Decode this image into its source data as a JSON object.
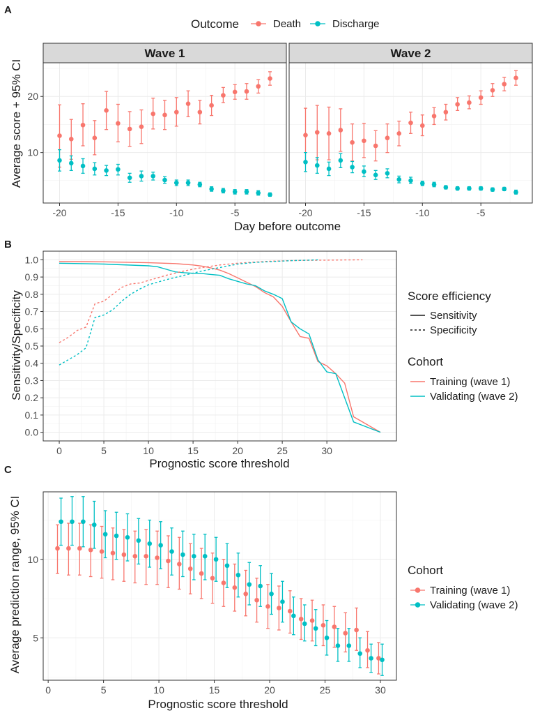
{
  "colors": {
    "death": "#F8766D",
    "discharge": "#00BFC4",
    "training": "#F8766D",
    "validating": "#00BFC4"
  },
  "chart_data": [
    {
      "panel": "A",
      "type": "scatter",
      "subtype": "pointrange-faceted",
      "facets": [
        "Wave 1",
        "Wave 2"
      ],
      "xlabel": "Day before outcome",
      "ylabel": "Average score + 95% CI",
      "xlim": [
        -21.4,
        -0.6
      ],
      "ylim": [
        1,
        26
      ],
      "xticks": [
        -20,
        -15,
        -10,
        -5
      ],
      "yticks": [
        10,
        20
      ],
      "legend": {
        "title": "Outcome",
        "position": "top",
        "entries": [
          "Death",
          "Discharge"
        ]
      },
      "series": [
        {
          "facet": "Wave 1",
          "name": "Death",
          "x": [
            -20,
            -19,
            -18,
            -17,
            -16,
            -15,
            -14,
            -13,
            -12,
            -11,
            -10,
            -9,
            -8,
            -7,
            -6,
            -5,
            -4,
            -3,
            -2
          ],
          "y": [
            13.0,
            12.4,
            14.9,
            12.6,
            17.5,
            15.2,
            14.2,
            14.6,
            16.9,
            16.7,
            17.2,
            18.7,
            17.2,
            18.4,
            20.2,
            20.8,
            20.9,
            21.8,
            23.2
          ],
          "lo": [
            7.4,
            8.8,
            11.2,
            9.6,
            14.1,
            11.9,
            11.1,
            11.6,
            14.2,
            14.1,
            14.7,
            16.4,
            15.1,
            16.6,
            18.9,
            19.5,
            19.5,
            20.6,
            22.0
          ],
          "hi": [
            18.5,
            15.9,
            18.7,
            15.7,
            20.9,
            18.6,
            17.3,
            17.6,
            19.7,
            19.3,
            19.8,
            21.0,
            19.3,
            20.2,
            21.6,
            22.1,
            22.3,
            23.0,
            24.4
          ]
        },
        {
          "facet": "Wave 1",
          "name": "Discharge",
          "x": [
            -20,
            -19,
            -18,
            -17,
            -16,
            -15,
            -14,
            -13,
            -12,
            -11,
            -10,
            -9,
            -8,
            -7,
            -6,
            -5,
            -4,
            -3,
            -2
          ],
          "y": [
            8.6,
            8.1,
            7.6,
            7.1,
            6.8,
            7.0,
            5.5,
            5.8,
            5.8,
            5.1,
            4.6,
            4.6,
            4.3,
            3.5,
            3.2,
            3.0,
            3.0,
            2.8,
            2.5
          ],
          "lo": [
            6.7,
            6.8,
            6.3,
            6.0,
            5.9,
            6.0,
            4.7,
            4.9,
            5.1,
            4.5,
            4.1,
            4.1,
            3.9,
            3.1,
            2.8,
            2.6,
            2.6,
            2.4,
            2.2
          ],
          "hi": [
            10.5,
            9.4,
            8.9,
            8.2,
            7.7,
            7.9,
            6.3,
            6.7,
            6.5,
            5.7,
            5.1,
            5.1,
            4.7,
            3.9,
            3.6,
            3.4,
            3.4,
            3.2,
            2.8
          ]
        },
        {
          "facet": "Wave 2",
          "name": "Death",
          "x": [
            -20,
            -19,
            -18,
            -17,
            -16,
            -15,
            -14,
            -13,
            -12,
            -11,
            -10,
            -9,
            -8,
            -7,
            -6,
            -5,
            -4,
            -3,
            -2
          ],
          "y": [
            13.1,
            13.6,
            13.4,
            14.0,
            11.8,
            12.1,
            11.2,
            12.6,
            13.4,
            15.3,
            14.8,
            16.5,
            17.2,
            18.6,
            18.9,
            19.8,
            21.1,
            22.2,
            23.3
          ],
          "lo": [
            8.2,
            8.7,
            8.7,
            10.2,
            8.5,
            9.1,
            8.5,
            10.0,
            11.2,
            13.4,
            13.0,
            15.0,
            15.8,
            17.5,
            17.8,
            18.6,
            20.0,
            21.0,
            22.0
          ],
          "hi": [
            17.9,
            18.4,
            18.1,
            17.8,
            15.1,
            15.2,
            13.9,
            15.1,
            15.6,
            17.2,
            16.7,
            18.0,
            18.6,
            19.8,
            20.1,
            21.0,
            22.3,
            23.4,
            24.6
          ]
        },
        {
          "facet": "Wave 2",
          "name": "Discharge",
          "x": [
            -20,
            -19,
            -18,
            -17,
            -16,
            -15,
            -14,
            -13,
            -12,
            -11,
            -10,
            -9,
            -8,
            -7,
            -6,
            -5,
            -4,
            -3,
            -2
          ],
          "y": [
            8.3,
            7.7,
            7.1,
            8.6,
            7.4,
            6.6,
            6.0,
            6.3,
            5.2,
            5.0,
            4.5,
            4.3,
            3.8,
            3.6,
            3.6,
            3.6,
            3.4,
            3.5,
            2.9
          ],
          "lo": [
            6.6,
            6.3,
            5.9,
            7.3,
            6.4,
            5.7,
            5.2,
            5.5,
            4.6,
            4.5,
            4.1,
            3.9,
            3.5,
            3.3,
            3.3,
            3.3,
            3.1,
            3.2,
            2.6
          ],
          "hi": [
            10.0,
            9.1,
            8.3,
            9.8,
            8.4,
            7.6,
            6.8,
            7.1,
            5.8,
            5.6,
            4.9,
            4.7,
            4.1,
            3.9,
            3.9,
            3.9,
            3.7,
            3.8,
            3.3
          ]
        }
      ]
    },
    {
      "panel": "B",
      "type": "line",
      "xlabel": "Prognostic score threshold",
      "ylabel": "Sensitivity/Specificity",
      "xlim": [
        -1.8,
        37.8
      ],
      "ylim": [
        -0.05,
        1.05
      ],
      "xticks": [
        0,
        5,
        10,
        15,
        20,
        25,
        30
      ],
      "yticks": [
        0.0,
        0.1,
        0.2,
        0.3,
        0.4,
        0.5,
        0.6,
        0.7,
        0.8,
        0.9,
        1.0
      ],
      "legends": [
        {
          "title": "Score efficiency",
          "entries": [
            "Sensitivity",
            "Specificity"
          ]
        },
        {
          "title": "Cohort",
          "entries": [
            "Training (wave 1)",
            "Validating (wave 2)"
          ]
        }
      ],
      "series": [
        {
          "name": "Training (wave 1)",
          "measure": "Sensitivity",
          "x": [
            0,
            5,
            10,
            13,
            15,
            16,
            17,
            18,
            19,
            20,
            21,
            22,
            23,
            24,
            25,
            26,
            27,
            28,
            29,
            30,
            31,
            32,
            33,
            36
          ],
          "y": [
            0.99,
            0.988,
            0.983,
            0.978,
            0.97,
            0.963,
            0.953,
            0.94,
            0.92,
            0.895,
            0.87,
            0.845,
            0.81,
            0.785,
            0.73,
            0.64,
            0.555,
            0.545,
            0.41,
            0.385,
            0.34,
            0.285,
            0.09,
            0.0
          ]
        },
        {
          "name": "Validating (wave 2)",
          "measure": "Sensitivity",
          "x": [
            0,
            5,
            10,
            11,
            12,
            13,
            14,
            15,
            16,
            17,
            18,
            19,
            20,
            21,
            22,
            23,
            24,
            25,
            26,
            27,
            28,
            29,
            30,
            31,
            32,
            33,
            36
          ],
          "y": [
            0.98,
            0.975,
            0.965,
            0.96,
            0.945,
            0.93,
            0.925,
            0.922,
            0.92,
            0.915,
            0.91,
            0.89,
            0.875,
            0.86,
            0.85,
            0.82,
            0.8,
            0.775,
            0.64,
            0.6,
            0.57,
            0.42,
            0.35,
            0.34,
            0.2,
            0.06,
            0.0
          ]
        },
        {
          "name": "Training (wave 1)",
          "measure": "Specificity",
          "x": [
            0,
            1,
            2,
            3,
            4,
            5,
            6,
            7,
            8,
            9,
            10,
            12,
            14,
            16,
            18,
            20,
            22,
            24,
            26,
            28,
            30,
            32,
            34
          ],
          "y": [
            0.52,
            0.55,
            0.59,
            0.61,
            0.745,
            0.76,
            0.8,
            0.84,
            0.86,
            0.865,
            0.88,
            0.91,
            0.935,
            0.955,
            0.97,
            0.98,
            0.987,
            0.992,
            0.995,
            0.997,
            0.998,
            0.999,
            1.0
          ]
        },
        {
          "name": "Validating (wave 2)",
          "measure": "Specificity",
          "x": [
            0,
            1,
            2,
            3,
            4,
            5,
            6,
            7,
            8,
            9,
            10,
            12,
            14,
            16,
            18,
            20,
            22,
            24,
            26,
            28,
            29
          ],
          "y": [
            0.39,
            0.42,
            0.45,
            0.49,
            0.665,
            0.68,
            0.71,
            0.76,
            0.8,
            0.83,
            0.855,
            0.885,
            0.91,
            0.935,
            0.955,
            0.975,
            0.985,
            0.99,
            0.995,
            0.998,
            1.0
          ]
        }
      ]
    },
    {
      "panel": "C",
      "type": "scatter",
      "subtype": "pointrange",
      "xlabel": "Prognostic score threshold",
      "ylabel": "Average prediction range, 95% CI",
      "xlim": [
        -0.45,
        31.45
      ],
      "ylim": [
        2.3,
        14.3
      ],
      "xticks": [
        0,
        5,
        10,
        15,
        20,
        25,
        30
      ],
      "yticks": [
        5,
        10
      ],
      "legend": {
        "title": "Cohort",
        "entries": [
          "Training (wave 1)",
          "Validating (wave 2)"
        ]
      },
      "series": [
        {
          "name": "Training (wave 1)",
          "x": [
            1,
            2,
            3,
            4,
            5,
            6,
            7,
            8,
            9,
            10,
            11,
            12,
            13,
            14,
            15,
            16,
            17,
            18,
            19,
            20,
            21,
            22,
            23,
            24,
            25,
            26,
            27,
            28,
            29,
            30
          ],
          "y": [
            10.7,
            10.7,
            10.7,
            10.6,
            10.5,
            10.4,
            10.3,
            10.2,
            10.2,
            10.1,
            9.9,
            9.7,
            9.4,
            9.1,
            8.8,
            8.5,
            8.2,
            7.8,
            7.4,
            7.0,
            6.9,
            6.7,
            6.2,
            6.1,
            5.8,
            5.7,
            5.3,
            5.5,
            4.2,
            3.7
          ],
          "lo": [
            9.1,
            9.0,
            9.0,
            8.9,
            8.8,
            8.7,
            8.6,
            8.5,
            8.4,
            8.4,
            8.2,
            8.1,
            7.8,
            7.5,
            7.2,
            7.0,
            6.7,
            6.4,
            6.0,
            5.6,
            5.5,
            5.3,
            4.9,
            4.8,
            4.5,
            4.4,
            4.1,
            4.2,
            3.1,
            2.7
          ],
          "hi": [
            12.2,
            12.3,
            12.3,
            12.2,
            12.1,
            12.0,
            11.9,
            11.8,
            11.9,
            11.8,
            11.5,
            11.4,
            11.0,
            10.7,
            10.4,
            10.0,
            9.7,
            9.3,
            8.8,
            8.4,
            8.3,
            8.0,
            7.5,
            7.4,
            7.1,
            7.0,
            6.6,
            6.9,
            5.4,
            4.7
          ]
        },
        {
          "name": "Validating (wave 2)",
          "x": [
            1,
            2,
            3,
            4,
            5,
            6,
            7,
            8,
            9,
            10,
            11,
            12,
            13,
            14,
            15,
            16,
            17,
            18,
            19,
            20,
            21,
            22,
            23,
            24,
            25,
            26,
            27,
            28,
            29,
            30
          ],
          "y": [
            12.4,
            12.4,
            12.4,
            12.2,
            11.6,
            11.5,
            11.4,
            11.2,
            11.0,
            10.9,
            10.5,
            10.3,
            10.2,
            10.2,
            10.0,
            9.6,
            9.0,
            8.4,
            8.3,
            7.8,
            7.3,
            6.4,
            5.9,
            5.6,
            5.0,
            4.5,
            4.5,
            4.0,
            3.7,
            3.6
          ],
          "lo": [
            10.9,
            10.9,
            10.8,
            10.7,
            10.1,
            10.0,
            9.9,
            9.7,
            9.5,
            9.4,
            9.0,
            8.9,
            8.7,
            8.7,
            8.6,
            8.2,
            7.6,
            7.1,
            7.0,
            6.5,
            6.0,
            5.2,
            4.8,
            4.5,
            3.9,
            3.5,
            3.5,
            3.1,
            2.8,
            2.6
          ],
          "hi": [
            13.9,
            14.0,
            14.0,
            13.7,
            13.1,
            13.0,
            12.9,
            12.6,
            12.5,
            12.4,
            12.0,
            11.8,
            11.6,
            11.6,
            11.4,
            11.0,
            10.4,
            9.8,
            9.6,
            9.1,
            8.6,
            7.6,
            7.1,
            6.8,
            6.1,
            5.6,
            5.6,
            5.0,
            4.6,
            4.6
          ]
        }
      ]
    }
  ]
}
